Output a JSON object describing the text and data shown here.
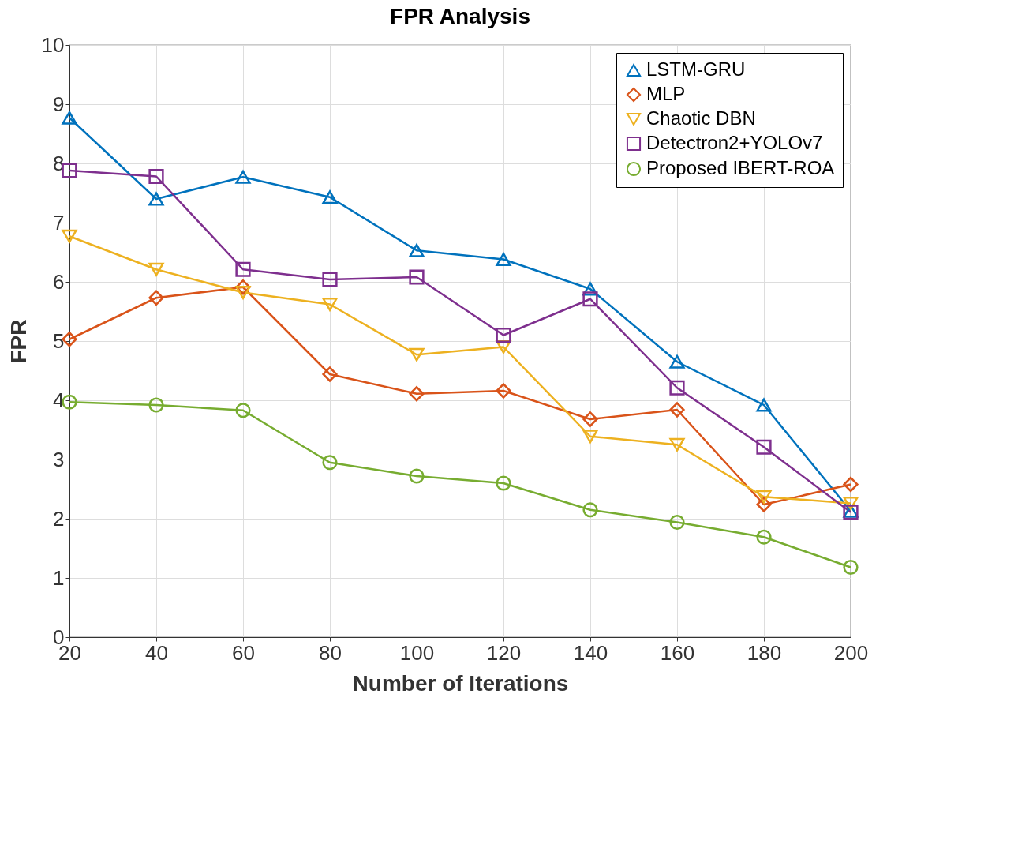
{
  "chart_data": {
    "type": "line",
    "title": "FPR Analysis",
    "xlabel": "Number of Iterations",
    "ylabel": "FPR",
    "x": [
      20,
      40,
      60,
      80,
      100,
      120,
      140,
      160,
      180,
      200
    ],
    "xlim": [
      20,
      200
    ],
    "xticks": [
      20,
      40,
      60,
      80,
      100,
      120,
      140,
      160,
      180,
      200
    ],
    "ylim": [
      0,
      10
    ],
    "yticks": [
      0,
      1,
      2,
      3,
      4,
      5,
      6,
      7,
      8,
      9,
      10
    ],
    "grid": true,
    "legend": "top right",
    "line_style": "solid",
    "series": [
      {
        "name": "LSTM-GRU",
        "color": "#0072bd",
        "marker": "triangle",
        "values": [
          8.77,
          7.4,
          7.77,
          7.43,
          6.53,
          6.38,
          5.88,
          4.65,
          3.92,
          2.13
        ]
      },
      {
        "name": "MLP",
        "color": "#d95319",
        "marker": "diamond",
        "values": [
          5.03,
          5.73,
          5.91,
          4.44,
          4.11,
          4.16,
          3.68,
          3.84,
          2.24,
          2.58
        ]
      },
      {
        "name": "Chaotic DBN",
        "color": "#edb120",
        "marker": "triangle-down",
        "values": [
          6.77,
          6.21,
          5.82,
          5.62,
          4.77,
          4.9,
          3.39,
          3.25,
          2.37,
          2.26
        ]
      },
      {
        "name": "Detectron2+YOLOv7",
        "color": "#7e2f8e",
        "marker": "square",
        "values": [
          7.88,
          7.78,
          6.21,
          6.04,
          6.08,
          5.1,
          5.71,
          4.21,
          3.21,
          2.11
        ]
      },
      {
        "name": "Proposed IBERT-ROA",
        "color": "#77ac30",
        "marker": "circle",
        "values": [
          3.97,
          3.92,
          3.83,
          2.95,
          2.72,
          2.6,
          2.15,
          1.94,
          1.69,
          1.18
        ]
      }
    ]
  }
}
